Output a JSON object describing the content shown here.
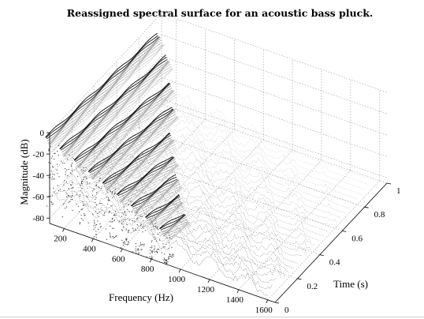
{
  "chart_data": {
    "type": "surface",
    "title": "Reassigned spectral surface for an acoustic bass pluck.",
    "xlabel": "Frequency (Hz)",
    "ylabel": "Time (s)",
    "zlabel": "Magnitude (dB)",
    "xlim": [
      100,
      1650
    ],
    "ylim": [
      0,
      1
    ],
    "zlim": [
      -85,
      0
    ],
    "x_ticks": [
      200,
      400,
      600,
      800,
      1000,
      1200,
      1400,
      1600
    ],
    "y_ticks": [
      0,
      0.2,
      0.4,
      0.6,
      0.8,
      1
    ],
    "z_ticks": [
      0,
      -20,
      -40,
      -60,
      -80
    ],
    "grid": true,
    "colormap": "grayscale (dark = early, light = late)",
    "partials": [
      {
        "frequency": 98,
        "start_db": -6,
        "decay_db_per_s": 14,
        "end_time": 1.0
      },
      {
        "frequency": 196,
        "start_db": -12,
        "decay_db_per_s": 20,
        "end_time": 0.95
      },
      {
        "frequency": 294,
        "start_db": -18,
        "decay_db_per_s": 26,
        "end_time": 0.85
      },
      {
        "frequency": 392,
        "start_db": -24,
        "decay_db_per_s": 30,
        "end_time": 0.75
      },
      {
        "frequency": 490,
        "start_db": -30,
        "decay_db_per_s": 34,
        "end_time": 0.6
      },
      {
        "frequency": 588,
        "start_db": -36,
        "decay_db_per_s": 38,
        "end_time": 0.5
      },
      {
        "frequency": 686,
        "start_db": -42,
        "decay_db_per_s": 40,
        "end_time": 0.4
      },
      {
        "frequency": 784,
        "start_db": -48,
        "decay_db_per_s": 42,
        "end_time": 0.3
      },
      {
        "frequency": 882,
        "start_db": -54,
        "decay_db_per_s": 44,
        "end_time": 0.22
      }
    ]
  }
}
